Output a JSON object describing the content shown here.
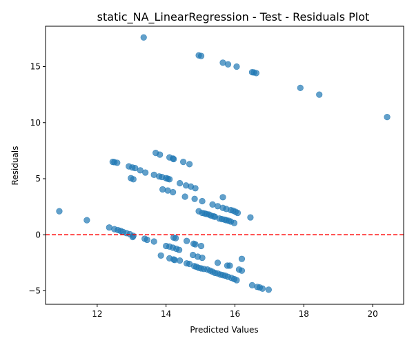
{
  "chart_data": {
    "type": "scatter",
    "title": "static_NA_LinearRegression - Test - Residuals Plot",
    "xlabel": "Predicted Values",
    "ylabel": "Residuals",
    "xlim": [
      10.5,
      20.9
    ],
    "ylim": [
      -6.2,
      18.6
    ],
    "xticks": [
      12,
      14,
      16,
      18,
      20
    ],
    "yticks": [
      -5,
      0,
      5,
      10,
      15
    ],
    "grid": false,
    "point_color": "#1f77b4",
    "reference_line": {
      "y": 0,
      "color": "#ff0000",
      "style": "dashed"
    },
    "series": [
      {
        "points": [
          [
            10.9,
            2.1
          ],
          [
            11.7,
            1.3
          ],
          [
            13.35,
            17.6
          ],
          [
            14.95,
            16.0
          ],
          [
            15.02,
            15.95
          ],
          [
            15.65,
            15.35
          ],
          [
            15.8,
            15.2
          ],
          [
            16.05,
            15.0
          ],
          [
            16.5,
            14.5
          ],
          [
            16.55,
            14.48
          ],
          [
            16.62,
            14.42
          ],
          [
            17.9,
            13.1
          ],
          [
            18.45,
            12.5
          ],
          [
            20.42,
            10.5
          ],
          [
            13.7,
            7.3
          ],
          [
            13.82,
            7.15
          ],
          [
            14.1,
            6.9
          ],
          [
            14.2,
            6.8
          ],
          [
            14.22,
            6.75
          ],
          [
            14.5,
            6.5
          ],
          [
            14.68,
            6.3
          ],
          [
            12.45,
            6.5
          ],
          [
            12.5,
            6.48
          ],
          [
            12.58,
            6.42
          ],
          [
            12.92,
            6.1
          ],
          [
            13.02,
            6.0
          ],
          [
            13.1,
            5.95
          ],
          [
            13.25,
            5.75
          ],
          [
            13.4,
            5.55
          ],
          [
            13.65,
            5.35
          ],
          [
            13.8,
            5.2
          ],
          [
            13.88,
            5.15
          ],
          [
            14.0,
            5.05
          ],
          [
            14.05,
            5.0
          ],
          [
            14.1,
            4.95
          ],
          [
            12.98,
            5.05
          ],
          [
            13.05,
            4.95
          ],
          [
            14.4,
            4.6
          ],
          [
            14.58,
            4.4
          ],
          [
            14.72,
            4.3
          ],
          [
            14.85,
            4.15
          ],
          [
            13.9,
            4.05
          ],
          [
            14.05,
            3.95
          ],
          [
            14.2,
            3.8
          ],
          [
            14.55,
            3.4
          ],
          [
            14.83,
            3.2
          ],
          [
            15.05,
            3.0
          ],
          [
            15.65,
            3.35
          ],
          [
            15.35,
            2.7
          ],
          [
            15.5,
            2.55
          ],
          [
            15.65,
            2.4
          ],
          [
            15.75,
            2.3
          ],
          [
            15.88,
            2.2
          ],
          [
            15.95,
            2.15
          ],
          [
            16.02,
            2.05
          ],
          [
            16.08,
            1.95
          ],
          [
            14.95,
            2.1
          ],
          [
            15.05,
            1.95
          ],
          [
            15.12,
            1.9
          ],
          [
            15.18,
            1.85
          ],
          [
            15.25,
            1.8
          ],
          [
            15.3,
            1.72
          ],
          [
            15.38,
            1.65
          ],
          [
            15.42,
            1.6
          ],
          [
            15.55,
            1.45
          ],
          [
            15.62,
            1.4
          ],
          [
            15.7,
            1.35
          ],
          [
            15.75,
            1.3
          ],
          [
            15.82,
            1.25
          ],
          [
            15.88,
            1.18
          ],
          [
            15.98,
            1.05
          ],
          [
            16.45,
            1.55
          ],
          [
            12.35,
            0.65
          ],
          [
            12.5,
            0.5
          ],
          [
            12.6,
            0.42
          ],
          [
            12.68,
            0.35
          ],
          [
            12.75,
            0.25
          ],
          [
            12.85,
            0.15
          ],
          [
            12.95,
            0.05
          ],
          [
            13.05,
            -0.1
          ],
          [
            13.03,
            -0.2
          ],
          [
            13.38,
            -0.35
          ],
          [
            13.45,
            -0.45
          ],
          [
            13.65,
            -0.6
          ],
          [
            14.22,
            -0.25
          ],
          [
            14.28,
            -0.3
          ],
          [
            14.6,
            -0.55
          ],
          [
            14.8,
            -0.8
          ],
          [
            14.85,
            -0.85
          ],
          [
            15.02,
            -1.0
          ],
          [
            14.0,
            -1.0
          ],
          [
            14.1,
            -1.05
          ],
          [
            14.2,
            -1.15
          ],
          [
            14.3,
            -1.25
          ],
          [
            14.38,
            -1.35
          ],
          [
            13.85,
            -1.85
          ],
          [
            14.78,
            -1.8
          ],
          [
            14.92,
            -1.95
          ],
          [
            15.05,
            -2.05
          ],
          [
            16.2,
            -2.15
          ],
          [
            14.1,
            -2.1
          ],
          [
            14.22,
            -2.2
          ],
          [
            14.25,
            -2.25
          ],
          [
            14.4,
            -2.3
          ],
          [
            14.6,
            -2.55
          ],
          [
            14.68,
            -2.6
          ],
          [
            14.82,
            -2.8
          ],
          [
            14.88,
            -2.85
          ],
          [
            14.95,
            -2.95
          ],
          [
            15.02,
            -3.0
          ],
          [
            15.1,
            -3.05
          ],
          [
            15.2,
            -3.1
          ],
          [
            15.28,
            -3.2
          ],
          [
            15.35,
            -3.3
          ],
          [
            15.42,
            -3.4
          ],
          [
            15.5,
            -3.45
          ],
          [
            15.58,
            -3.55
          ],
          [
            15.65,
            -3.6
          ],
          [
            15.72,
            -3.65
          ],
          [
            15.8,
            -3.75
          ],
          [
            15.9,
            -3.85
          ],
          [
            15.98,
            -3.95
          ],
          [
            16.05,
            -4.05
          ],
          [
            15.5,
            -2.5
          ],
          [
            15.78,
            -2.75
          ],
          [
            15.85,
            -2.75
          ],
          [
            16.12,
            -3.1
          ],
          [
            16.2,
            -3.2
          ],
          [
            16.5,
            -4.5
          ],
          [
            16.65,
            -4.65
          ],
          [
            16.72,
            -4.7
          ],
          [
            16.8,
            -4.8
          ],
          [
            16.98,
            -4.9
          ]
        ]
      }
    ]
  }
}
